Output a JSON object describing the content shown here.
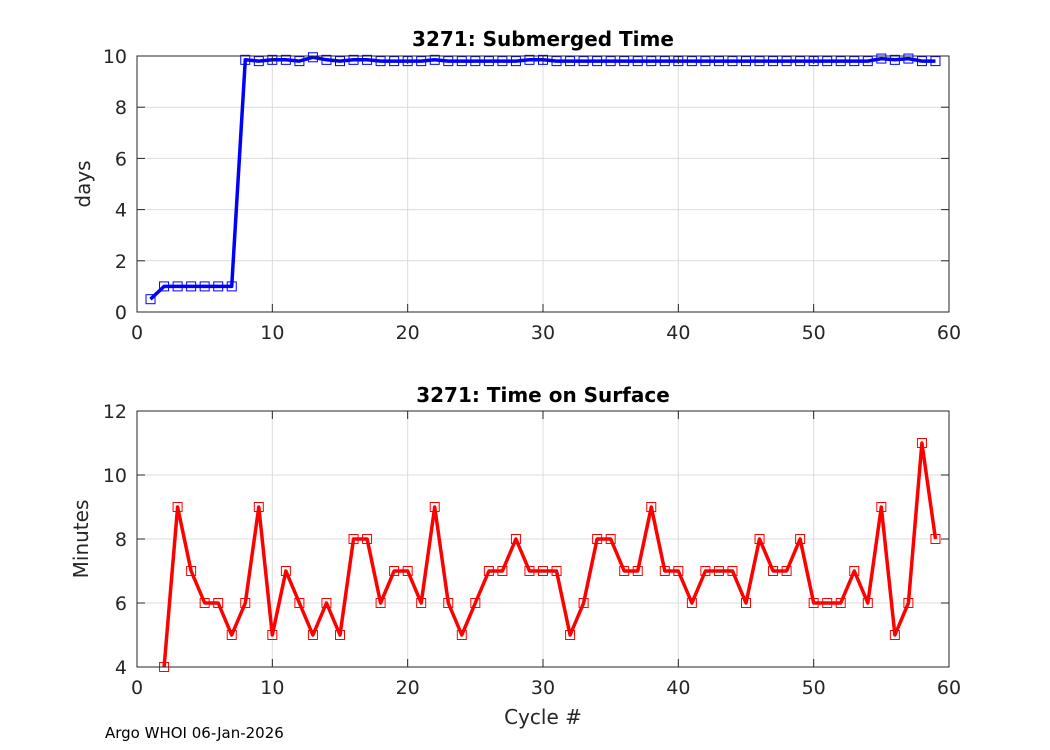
{
  "footer": {
    "text": "Argo WHOI 06-Jan-2026"
  },
  "chart_data": [
    {
      "type": "line",
      "title": "3271: Submerged Time",
      "xlabel": "",
      "ylabel": "days",
      "xlim": [
        0,
        60
      ],
      "ylim": [
        0,
        10
      ],
      "xticks": [
        "0",
        "10",
        "20",
        "30",
        "40",
        "50",
        "60"
      ],
      "yticks": [
        "0",
        "2",
        "4",
        "6",
        "8",
        "10"
      ],
      "grid": true,
      "color": "#0000ff",
      "marker": "square",
      "x": [
        1,
        2,
        3,
        4,
        5,
        6,
        7,
        8,
        9,
        10,
        11,
        12,
        13,
        14,
        15,
        16,
        17,
        18,
        19,
        20,
        21,
        22,
        23,
        24,
        25,
        26,
        27,
        28,
        29,
        30,
        31,
        32,
        33,
        34,
        35,
        36,
        37,
        38,
        39,
        40,
        41,
        42,
        43,
        44,
        45,
        46,
        47,
        48,
        49,
        50,
        51,
        52,
        53,
        54,
        55,
        56,
        57,
        58,
        59
      ],
      "y": [
        0.5,
        1.0,
        1.0,
        1.0,
        1.0,
        1.0,
        1.0,
        9.85,
        9.8,
        9.85,
        9.85,
        9.8,
        9.95,
        9.85,
        9.8,
        9.85,
        9.85,
        9.8,
        9.8,
        9.8,
        9.8,
        9.85,
        9.8,
        9.8,
        9.8,
        9.8,
        9.8,
        9.8,
        9.85,
        9.85,
        9.8,
        9.8,
        9.8,
        9.8,
        9.8,
        9.8,
        9.8,
        9.8,
        9.8,
        9.8,
        9.8,
        9.8,
        9.8,
        9.8,
        9.8,
        9.8,
        9.8,
        9.8,
        9.8,
        9.8,
        9.8,
        9.8,
        9.8,
        9.8,
        9.9,
        9.85,
        9.9,
        9.8,
        9.8
      ]
    },
    {
      "type": "line",
      "title": "3271: Time on Surface",
      "xlabel": "Cycle #",
      "ylabel": "Minutes",
      "xlim": [
        0,
        60
      ],
      "ylim": [
        4,
        12
      ],
      "xticks": [
        "0",
        "10",
        "20",
        "30",
        "40",
        "50",
        "60"
      ],
      "yticks": [
        "4",
        "6",
        "8",
        "10",
        "12"
      ],
      "grid": true,
      "color": "#ff0000",
      "marker": "square",
      "x": [
        2,
        3,
        4,
        5,
        6,
        7,
        8,
        9,
        10,
        11,
        12,
        13,
        14,
        15,
        16,
        17,
        18,
        19,
        20,
        21,
        22,
        23,
        24,
        25,
        26,
        27,
        28,
        29,
        30,
        31,
        32,
        33,
        34,
        35,
        36,
        37,
        38,
        39,
        40,
        41,
        42,
        43,
        44,
        45,
        46,
        47,
        48,
        49,
        50,
        51,
        52,
        53,
        54,
        55,
        56,
        57,
        58,
        59
      ],
      "y": [
        4,
        9,
        7,
        6,
        6,
        5,
        6,
        9,
        5,
        7,
        6,
        5,
        6,
        5,
        8,
        8,
        6,
        7,
        7,
        6,
        9,
        6,
        5,
        6,
        7,
        7,
        8,
        7,
        7,
        7,
        5,
        6,
        8,
        8,
        7,
        7,
        9,
        7,
        7,
        6,
        7,
        7,
        7,
        6,
        8,
        7,
        7,
        8,
        6,
        6,
        6,
        7,
        6,
        9,
        5,
        6,
        11,
        8
      ]
    }
  ]
}
